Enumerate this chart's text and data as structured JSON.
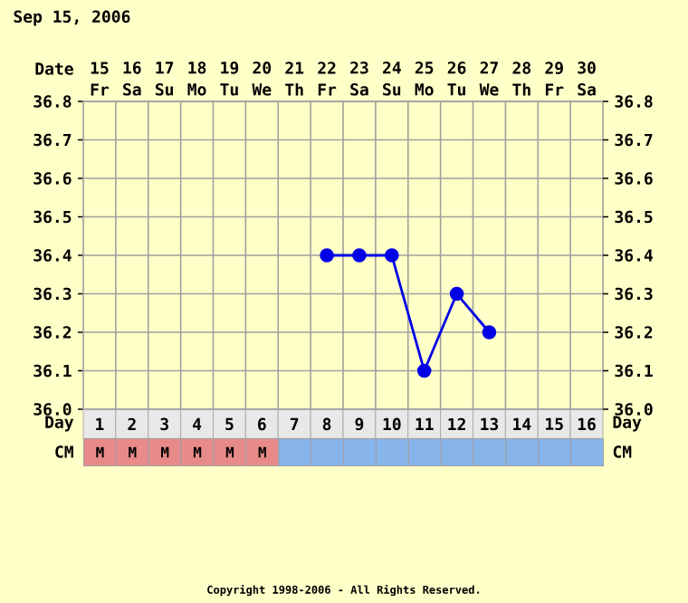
{
  "chart_data": [
    {
      "type": "line",
      "title": "Sep 15, 2006",
      "xlabel": "Day",
      "x2label": "Date",
      "xlim": [
        0.5,
        16.5
      ],
      "xticks": [
        1,
        2,
        3,
        4,
        5,
        6,
        7,
        8,
        9,
        10,
        11,
        12,
        13,
        14,
        15,
        16
      ],
      "x2lim": [
        14.5,
        30.5
      ],
      "x2ticks": [
        {
          "value": 15,
          "label": "15 Fr"
        },
        {
          "value": 16,
          "label": "16 Sa"
        },
        {
          "value": 17,
          "label": "17 Su"
        },
        {
          "value": 18,
          "label": "18 Mo"
        },
        {
          "value": 19,
          "label": "19 Tu"
        },
        {
          "value": 20,
          "label": "20 We"
        },
        {
          "value": 21,
          "label": "21 Th"
        },
        {
          "value": 22,
          "label": "22 Fr"
        },
        {
          "value": 23,
          "label": "23 Sa"
        },
        {
          "value": 24,
          "label": "24 Su"
        },
        {
          "value": 25,
          "label": "25 Mo"
        },
        {
          "value": 26,
          "label": "26 Tu"
        },
        {
          "value": 27,
          "label": "27 We"
        },
        {
          "value": 28,
          "label": "28 Th"
        },
        {
          "value": 29,
          "label": "29 Fr"
        },
        {
          "value": 30,
          "label": "30 Sa"
        }
      ],
      "ylim": [
        36.0,
        36.8
      ],
      "yticks": [
        {
          "value": 36.0,
          "label": "36.0"
        },
        36.1,
        36.2,
        36.3,
        36.4,
        36.5,
        36.6,
        36.7,
        36.8
      ],
      "y2lim": [
        36.0,
        36.8
      ],
      "y2ticks": [
        {
          "value": 36.0,
          "label": "36.0"
        },
        36.1,
        36.2,
        36.3,
        36.4,
        36.5,
        36.6,
        36.7,
        36.8
      ],
      "grid": true,
      "marker": "circle",
      "line_style": "solid",
      "series": [
        {
          "color": "#0000e6",
          "x": [
            8,
            9,
            10,
            11,
            12,
            13
          ],
          "values": [
            36.4,
            36.4,
            36.4,
            36.1,
            36.3,
            36.2
          ]
        }
      ],
      "annotations": [
        "Copyright 1998-2006 - All Rights Reserved."
      ]
    },
    {
      "type": "other",
      "ylabel": "CM",
      "y2label": "CM",
      "categories": [
        "M",
        "M",
        "M",
        "M",
        "M",
        "M",
        null,
        null,
        null,
        null,
        null,
        null,
        null,
        null,
        null,
        null
      ],
      "colors": [
        "#e88a8a",
        "#e88a8a",
        "#e88a8a",
        "#e88a8a",
        "#e88a8a",
        "#e88a8a",
        "#88b4ec",
        "#88b4ec",
        "#88b4ec",
        "#88b4ec",
        "#88b4ec",
        "#88b4ec",
        "#88b4ec",
        "#88b4ec",
        "#88b4ec",
        "#88b4ec"
      ]
    }
  ]
}
